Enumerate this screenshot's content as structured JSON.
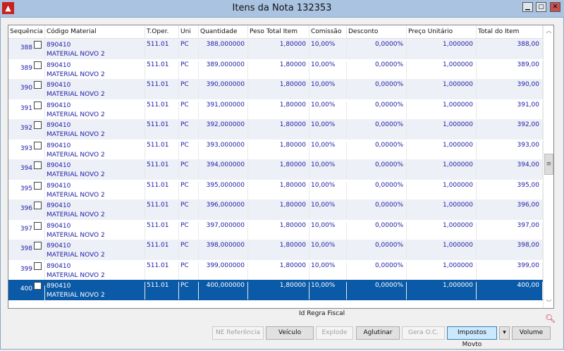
{
  "window": {
    "title": "Itens da Nota 132353",
    "app_icon": "app-logo-icon",
    "controls": {
      "minimize": "▁",
      "maximize": "▢",
      "close": "✕"
    }
  },
  "grid": {
    "columns": [
      "Sequência",
      "Código Material",
      "T.Oper.",
      "Uni",
      "Quantidade",
      "Peso Total Item",
      "Comissão",
      "Desconto",
      "Preço Unitário",
      "Total do Item"
    ],
    "rows": [
      {
        "seq": "388",
        "code": "890410",
        "desc": "MATERIAL NOVO 2",
        "toper": "511.01",
        "uni": "PC",
        "qty": "388,000000",
        "peso": "1,80000",
        "com": "10,00%",
        "desc_pct": "0,0000%",
        "preco": "1,000000",
        "total": "388,00"
      },
      {
        "seq": "389",
        "code": "890410",
        "desc": "MATERIAL NOVO 2",
        "toper": "511.01",
        "uni": "PC",
        "qty": "389,000000",
        "peso": "1,80000",
        "com": "10,00%",
        "desc_pct": "0,0000%",
        "preco": "1,000000",
        "total": "389,00"
      },
      {
        "seq": "390",
        "code": "890410",
        "desc": "MATERIAL NOVO 2",
        "toper": "511.01",
        "uni": "PC",
        "qty": "390,000000",
        "peso": "1,80000",
        "com": "10,00%",
        "desc_pct": "0,0000%",
        "preco": "1,000000",
        "total": "390,00"
      },
      {
        "seq": "391",
        "code": "890410",
        "desc": "MATERIAL NOVO 2",
        "toper": "511.01",
        "uni": "PC",
        "qty": "391,000000",
        "peso": "1,80000",
        "com": "10,00%",
        "desc_pct": "0,0000%",
        "preco": "1,000000",
        "total": "391,00"
      },
      {
        "seq": "392",
        "code": "890410",
        "desc": "MATERIAL NOVO 2",
        "toper": "511.01",
        "uni": "PC",
        "qty": "392,000000",
        "peso": "1,80000",
        "com": "10,00%",
        "desc_pct": "0,0000%",
        "preco": "1,000000",
        "total": "392,00"
      },
      {
        "seq": "393",
        "code": "890410",
        "desc": "MATERIAL NOVO 2",
        "toper": "511.01",
        "uni": "PC",
        "qty": "393,000000",
        "peso": "1,80000",
        "com": "10,00%",
        "desc_pct": "0,0000%",
        "preco": "1,000000",
        "total": "393,00"
      },
      {
        "seq": "394",
        "code": "890410",
        "desc": "MATERIAL NOVO 2",
        "toper": "511.01",
        "uni": "PC",
        "qty": "394,000000",
        "peso": "1,80000",
        "com": "10,00%",
        "desc_pct": "0,0000%",
        "preco": "1,000000",
        "total": "394,00"
      },
      {
        "seq": "395",
        "code": "890410",
        "desc": "MATERIAL NOVO 2",
        "toper": "511.01",
        "uni": "PC",
        "qty": "395,000000",
        "peso": "1,80000",
        "com": "10,00%",
        "desc_pct": "0,0000%",
        "preco": "1,000000",
        "total": "395,00"
      },
      {
        "seq": "396",
        "code": "890410",
        "desc": "MATERIAL NOVO 2",
        "toper": "511.01",
        "uni": "PC",
        "qty": "396,000000",
        "peso": "1,80000",
        "com": "10,00%",
        "desc_pct": "0,0000%",
        "preco": "1,000000",
        "total": "396,00"
      },
      {
        "seq": "397",
        "code": "890410",
        "desc": "MATERIAL NOVO 2",
        "toper": "511.01",
        "uni": "PC",
        "qty": "397,000000",
        "peso": "1,80000",
        "com": "10,00%",
        "desc_pct": "0,0000%",
        "preco": "1,000000",
        "total": "397,00"
      },
      {
        "seq": "398",
        "code": "890410",
        "desc": "MATERIAL NOVO 2",
        "toper": "511.01",
        "uni": "PC",
        "qty": "398,000000",
        "peso": "1,80000",
        "com": "10,00%",
        "desc_pct": "0,0000%",
        "preco": "1,000000",
        "total": "398,00"
      },
      {
        "seq": "399",
        "code": "890410",
        "desc": "MATERIAL NOVO 2",
        "toper": "511.01",
        "uni": "PC",
        "qty": "399,000000",
        "peso": "1,80000",
        "com": "10,00%",
        "desc_pct": "0,0000%",
        "preco": "1,000000",
        "total": "399,00"
      },
      {
        "seq": "400",
        "code": "890410",
        "desc": "MATERIAL NOVO 2",
        "toper": "511.01",
        "uni": "PC",
        "qty": "400,000000",
        "peso": "1,80000",
        "com": "10,00%",
        "desc_pct": "0,0000%",
        "preco": "1,000000",
        "total": "400,00",
        "selected": true
      }
    ]
  },
  "footer": {
    "id_regra_fiscal_label": "Id Regra Fiscal",
    "search_icon": "magnifier-icon"
  },
  "buttons": {
    "ne_referencia": "NE Referência",
    "veiculo": "Veículo",
    "explode": "Explode",
    "aglutinar": "Aglutinar",
    "gera_oc": "Gera O.C.",
    "impostos_movto": "Impostos Movto",
    "dropdown": "▾",
    "volume": "Volume"
  },
  "colors": {
    "selection": "#0a5aa8",
    "text": "#2020a8"
  }
}
